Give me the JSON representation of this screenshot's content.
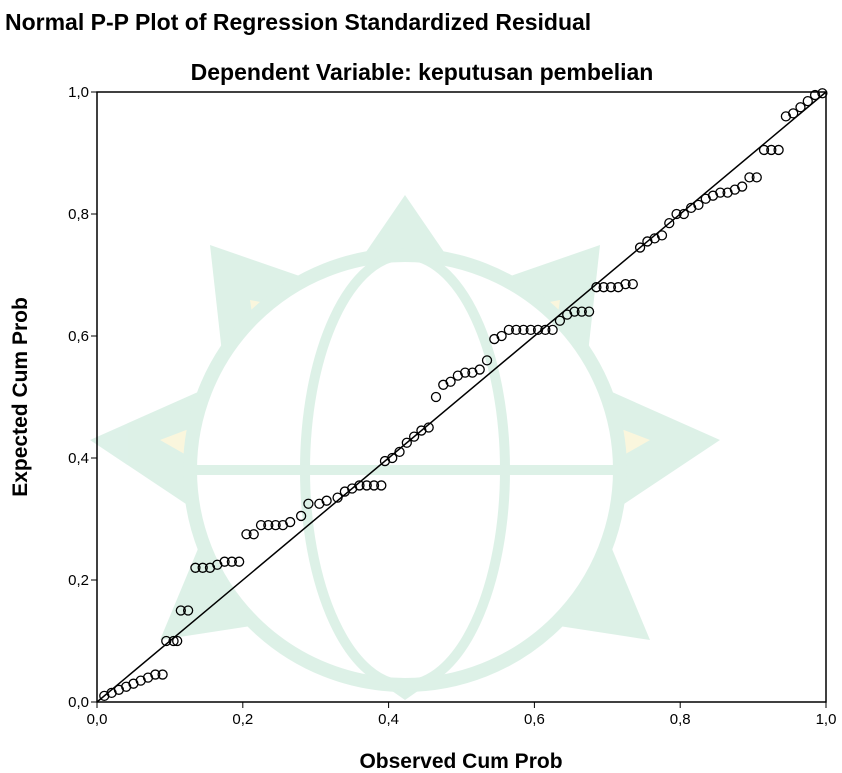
{
  "chart_data": {
    "type": "scatter",
    "title": "Normal P-P Plot of Regression Standardized Residual",
    "subtitle": "Dependent Variable: keputusan pembelian",
    "x_label": "Observed Cum Prob",
    "y_label": "Expected Cum Prob",
    "color": "#000000",
    "xlim": [
      0,
      1
    ],
    "ylim": [
      0,
      1
    ],
    "xticks": [
      {
        "value": 0,
        "label": "0,0"
      },
      {
        "value": 0.2,
        "label": "0,2"
      },
      {
        "value": 0.4,
        "label": "0,4"
      },
      {
        "value": 0.6,
        "label": "0,6"
      },
      {
        "value": 0.8,
        "label": "0,8"
      },
      {
        "value": 1,
        "label": "1,0"
      }
    ],
    "yticks": [
      {
        "value": 0,
        "label": "0,0"
      },
      {
        "value": 0.2,
        "label": "0,2"
      },
      {
        "value": 0.4,
        "label": "0,4"
      },
      {
        "value": 0.6,
        "label": "0,6"
      },
      {
        "value": 0.8,
        "label": "0,8"
      },
      {
        "value": 1,
        "label": "1,0"
      }
    ],
    "x": [
      0.01,
      0.02,
      0.03,
      0.04,
      0.05,
      0.06,
      0.07,
      0.08,
      0.09,
      0.095,
      0.105,
      0.11,
      0.115,
      0.125,
      0.135,
      0.145,
      0.155,
      0.165,
      0.175,
      0.185,
      0.195,
      0.205,
      0.215,
      0.225,
      0.235,
      0.245,
      0.255,
      0.265,
      0.28,
      0.29,
      0.305,
      0.315,
      0.33,
      0.34,
      0.35,
      0.36,
      0.37,
      0.38,
      0.39,
      0.395,
      0.405,
      0.415,
      0.425,
      0.435,
      0.445,
      0.455,
      0.465,
      0.475,
      0.485,
      0.495,
      0.505,
      0.515,
      0.525,
      0.535,
      0.545,
      0.555,
      0.565,
      0.575,
      0.585,
      0.595,
      0.605,
      0.615,
      0.625,
      0.635,
      0.645,
      0.655,
      0.665,
      0.675,
      0.685,
      0.695,
      0.705,
      0.715,
      0.725,
      0.735,
      0.745,
      0.755,
      0.765,
      0.775,
      0.785,
      0.795,
      0.805,
      0.815,
      0.825,
      0.835,
      0.845,
      0.855,
      0.865,
      0.875,
      0.885,
      0.895,
      0.905,
      0.915,
      0.925,
      0.935,
      0.945,
      0.955,
      0.965,
      0.975,
      0.985,
      0.995
    ],
    "values": [
      0.01,
      0.015,
      0.02,
      0.025,
      0.03,
      0.035,
      0.04,
      0.045,
      0.045,
      0.1,
      0.1,
      0.1,
      0.15,
      0.15,
      0.22,
      0.22,
      0.22,
      0.225,
      0.23,
      0.23,
      0.23,
      0.275,
      0.275,
      0.29,
      0.29,
      0.29,
      0.29,
      0.295,
      0.305,
      0.325,
      0.325,
      0.33,
      0.335,
      0.345,
      0.35,
      0.355,
      0.355,
      0.355,
      0.355,
      0.395,
      0.4,
      0.41,
      0.425,
      0.435,
      0.445,
      0.45,
      0.5,
      0.52,
      0.525,
      0.535,
      0.54,
      0.54,
      0.545,
      0.56,
      0.595,
      0.6,
      0.61,
      0.61,
      0.61,
      0.61,
      0.61,
      0.61,
      0.61,
      0.625,
      0.635,
      0.64,
      0.64,
      0.64,
      0.68,
      0.68,
      0.68,
      0.68,
      0.685,
      0.685,
      0.745,
      0.755,
      0.76,
      0.765,
      0.785,
      0.8,
      0.8,
      0.81,
      0.815,
      0.825,
      0.83,
      0.835,
      0.835,
      0.84,
      0.845,
      0.86,
      0.86,
      0.905,
      0.905,
      0.905,
      0.96,
      0.965,
      0.975,
      0.985,
      0.995,
      0.998
    ]
  }
}
